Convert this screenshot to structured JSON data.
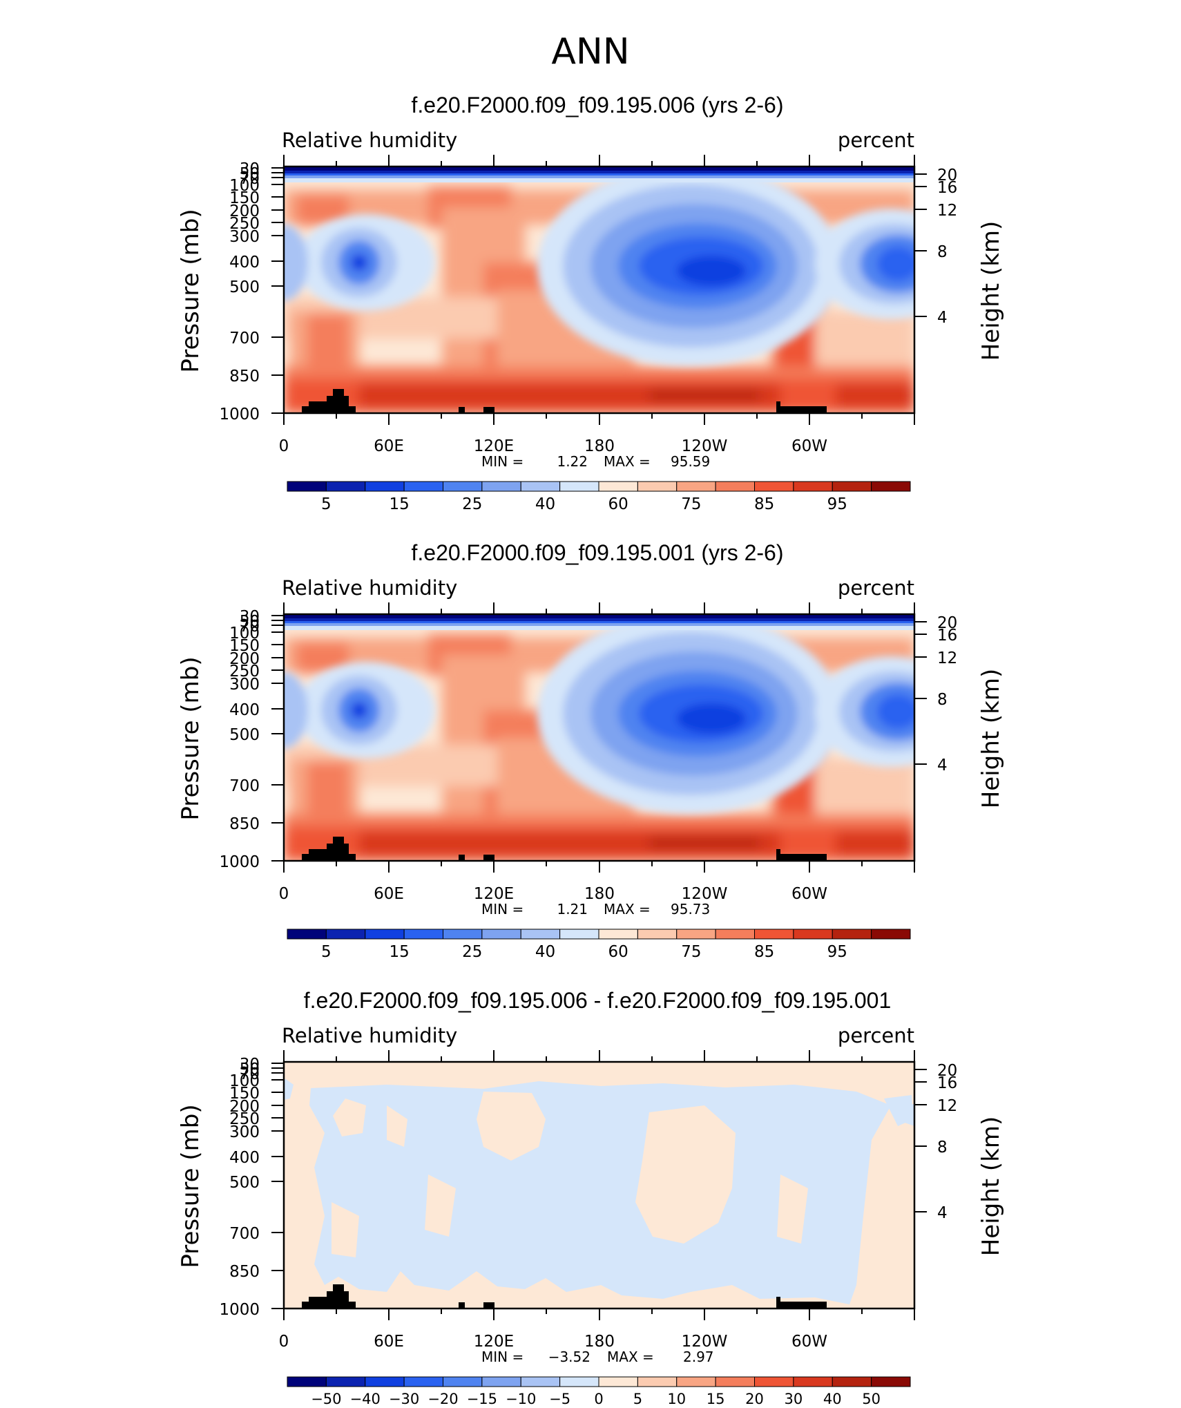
{
  "page": {
    "title": "ANN"
  },
  "chart_data": [
    {
      "type": "heatmap",
      "title": "f.e20.F2000.f09_f09.195.006 (yrs 2-6)",
      "left_label": "Relative humidity",
      "right_label": "percent",
      "ylabel": "Pressure (mb)",
      "right_ylabel": "Height (km)",
      "y_ticks": [
        1000,
        850,
        700,
        500,
        400,
        300,
        250,
        200,
        150,
        100,
        70,
        50,
        30
      ],
      "right_ticks": [
        4,
        8,
        12,
        16,
        20
      ],
      "x_ticks": [
        "0",
        "60E",
        "120E",
        "180",
        "120W",
        "60W"
      ],
      "min_label": "MIN =",
      "min_value": "1.22",
      "max_label": "MAX =",
      "max_value": "95.59",
      "colorbar_labels": [
        "5",
        "15",
        "25",
        "40",
        "60",
        "75",
        "85",
        "95"
      ]
    },
    {
      "type": "heatmap",
      "title": "f.e20.F2000.f09_f09.195.001 (yrs 2-6)",
      "left_label": "Relative humidity",
      "right_label": "percent",
      "ylabel": "Pressure (mb)",
      "right_ylabel": "Height (km)",
      "y_ticks": [
        1000,
        850,
        700,
        500,
        400,
        300,
        250,
        200,
        150,
        100,
        70,
        50,
        30
      ],
      "right_ticks": [
        4,
        8,
        12,
        16,
        20
      ],
      "x_ticks": [
        "0",
        "60E",
        "120E",
        "180",
        "120W",
        "60W"
      ],
      "min_label": "MIN =",
      "min_value": "1.21",
      "max_label": "MAX =",
      "max_value": "95.73",
      "colorbar_labels": [
        "5",
        "15",
        "25",
        "40",
        "60",
        "75",
        "85",
        "95"
      ]
    },
    {
      "type": "heatmap",
      "title": "f.e20.F2000.f09_f09.195.006 - f.e20.F2000.f09_f09.195.001",
      "left_label": "Relative humidity",
      "right_label": "percent",
      "ylabel": "Pressure (mb)",
      "right_ylabel": "Height (km)",
      "y_ticks": [
        1000,
        850,
        700,
        500,
        400,
        300,
        250,
        200,
        150,
        100,
        70,
        50,
        30
      ],
      "right_ticks": [
        4,
        8,
        12,
        16,
        20
      ],
      "x_ticks": [
        "0",
        "60E",
        "120E",
        "180",
        "120W",
        "60W"
      ],
      "min_label": "MIN =",
      "min_value": "−3.52",
      "max_label": "MAX =",
      "max_value": "2.97",
      "colorbar_labels": [
        "−50",
        "−40",
        "−30",
        "−20",
        "−15",
        "−10",
        "−5",
        "0",
        "5",
        "10",
        "15",
        "20",
        "30",
        "40",
        "50"
      ]
    }
  ],
  "colors": {
    "palette": [
      "#00037a",
      "#0b23b0",
      "#1040e0",
      "#2a62f0",
      "#4f83f0",
      "#7ea3f0",
      "#a9c3f4",
      "#d5e6fa",
      "#fde8d6",
      "#fbcbb0",
      "#f8a583",
      "#f47e5c",
      "#ef5535",
      "#d9391f",
      "#b4230f",
      "#8a0a05"
    ],
    "topography": "#000000"
  }
}
